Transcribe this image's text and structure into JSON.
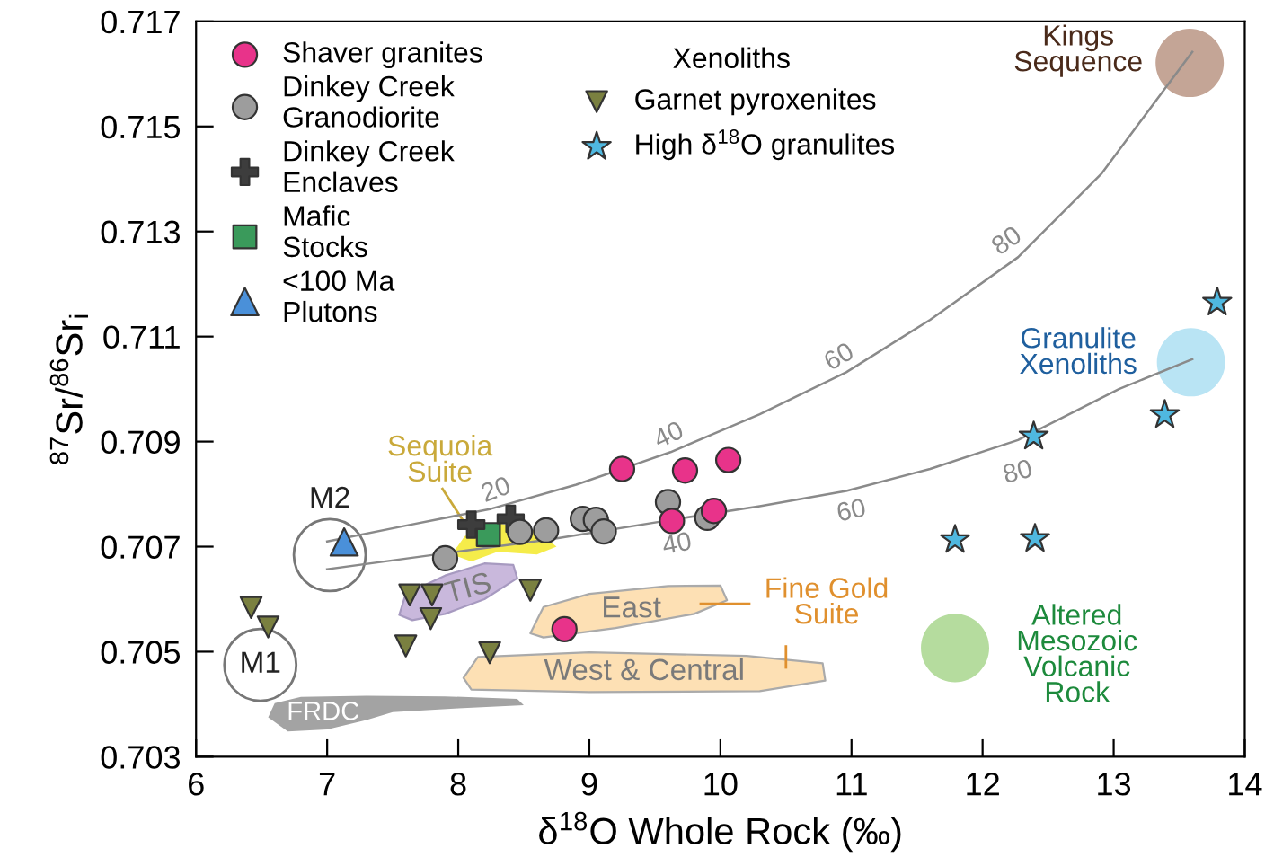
{
  "chart_data": {
    "type": "scatter",
    "xlabel": "δ$^{18}$O Whole Rock (‰)",
    "ylabel": "$^{87}$Sr/$^{86}$Sr$_{i}$",
    "xlim": [
      6,
      14
    ],
    "xticks": [
      6,
      7,
      8,
      9,
      10,
      11,
      12,
      13,
      14
    ],
    "ylim": [
      0.703,
      0.717
    ],
    "yticks": [
      {
        "value": 0.703,
        "label": "0.703"
      },
      {
        "value": 0.705,
        "label": "0.705"
      },
      {
        "value": 0.707,
        "label": "0.707"
      },
      {
        "value": 0.709,
        "label": "0.709"
      },
      {
        "value": 0.711,
        "label": "0.711"
      },
      {
        "value": 0.713,
        "label": "0.713"
      },
      {
        "value": 0.715,
        "label": "0.715"
      },
      {
        "value": 0.717,
        "label": "0.717"
      }
    ],
    "grid": false,
    "legend": "top left",
    "legend_title": "Xenoliths",
    "series": [
      {
        "type": "line",
        "color": "#8a8a8a",
        "marker": "none",
        "x": [
          7.0,
          7.6,
          8.25,
          8.9,
          9.62,
          10.3,
          10.96,
          11.6,
          12.27,
          12.91,
          13.6
        ],
        "values": [
          0.7071,
          0.7074,
          0.70772,
          0.70818,
          0.7088,
          0.70952,
          0.71032,
          0.71132,
          0.71251,
          0.71411,
          0.71642
        ]
      },
      {
        "type": "line",
        "color": "#8a8a8a",
        "marker": "none",
        "x": [
          7.0,
          7.8,
          8.71,
          9.65,
          10.3,
          10.96,
          11.6,
          12.27,
          13.04,
          13.6
        ],
        "values": [
          0.70657,
          0.70684,
          0.70714,
          0.70752,
          0.70777,
          0.70806,
          0.70848,
          0.70903,
          0.71,
          0.71057
        ]
      },
      {
        "name": "Shaver granites",
        "color": "#e8338a",
        "marker": "circle",
        "x": [
          9.25,
          9.73,
          10.06,
          9.63,
          9.95,
          8.81
        ],
        "values": [
          0.70848,
          0.70845,
          0.70865,
          0.70749,
          0.70768,
          0.70543
        ]
      },
      {
        "name": "Dinkey Creek\nGranodiorite",
        "color": "#9d9d9d",
        "marker": "circle",
        "x": [
          7.9,
          8.47,
          8.67,
          8.95,
          9.05,
          9.11,
          9.6,
          9.9
        ],
        "values": [
          0.70678,
          0.70728,
          0.70731,
          0.70753,
          0.70751,
          0.70729,
          0.70785,
          0.70755
        ]
      },
      {
        "name": "Dinkey Creek\nEnclaves",
        "color": "#3d3d3d",
        "marker": "cross",
        "x": [
          8.1,
          8.4
        ],
        "values": [
          0.70742,
          0.70753
        ]
      },
      {
        "name": "Mafic\nStocks",
        "color": "#3a9a5b",
        "marker": "square",
        "x": [
          8.23
        ],
        "values": [
          0.70723
        ]
      },
      {
        "name": "<100 Ma\nPlutons",
        "color": "#4a90d9",
        "marker": "triangle",
        "x": [
          7.13
        ],
        "values": [
          0.70709
        ]
      },
      {
        "name": "Garnet pyroxenites",
        "color": "#7a8040",
        "marker": "triangle_down",
        "x": [
          6.42,
          6.55,
          7.63,
          7.8,
          7.79,
          7.6,
          8.55,
          8.24
        ],
        "values": [
          0.70584,
          0.70547,
          0.70608,
          0.70608,
          0.70563,
          0.70511,
          0.70617,
          0.70498
        ]
      },
      {
        "name": "High δ$^{18}$O granulites",
        "color": "#4fb8e0",
        "marker": "star",
        "x": [
          13.79,
          12.39,
          13.39,
          11.79,
          12.4
        ],
        "values": [
          0.71165,
          0.7091,
          0.70951,
          0.70713,
          0.70715
        ]
      }
    ],
    "annotations": [
      "Kings\nSequence",
      "Granulite\nXenoliths",
      "Altered\nMesozoic\nVolcanic\nRock",
      "Fine Gold\nSuite",
      "Sequoia\nSuite",
      "M2",
      "M1",
      "TIS",
      "East",
      "West & Central",
      "FRDC",
      "20",
      "40",
      "60",
      "80",
      "40",
      "60",
      "80"
    ]
  }
}
